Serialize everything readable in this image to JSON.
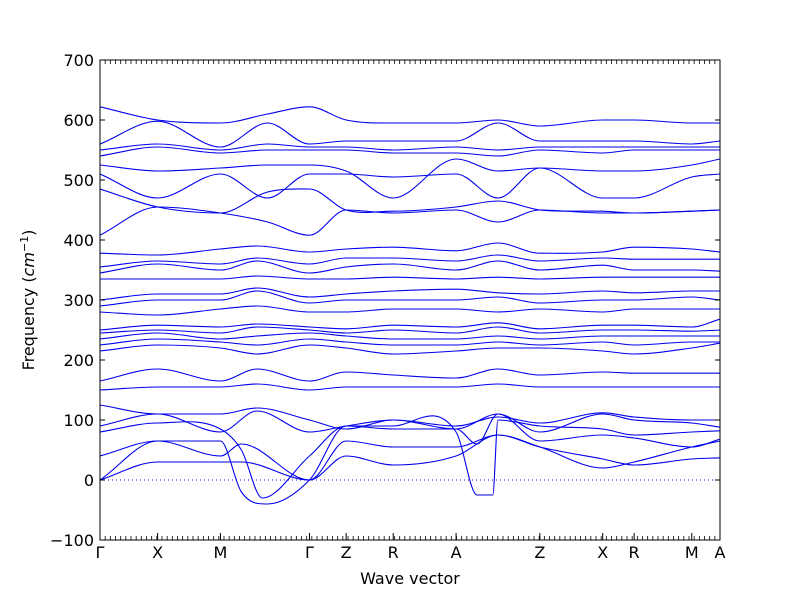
{
  "chart_data": {
    "type": "line",
    "xlabel": "Wave vector",
    "ylabel": "Frequency",
    "ylabel_unit": "cm",
    "ylabel_exponent": "−1",
    "ylim": [
      -100,
      700
    ],
    "yticks": [
      -100,
      0,
      100,
      200,
      300,
      400,
      500,
      600,
      700
    ],
    "path_points": [
      "Γ",
      "X",
      "M",
      "Γ",
      "Z",
      "R",
      "A",
      "Z",
      "X",
      "R",
      "M",
      "A"
    ],
    "path_positions": [
      0,
      0.55,
      1.15,
      2.0,
      2.35,
      2.8,
      3.4,
      4.2,
      4.8,
      5.1,
      5.65,
      5.92
    ],
    "x_range": [
      0,
      5.92
    ],
    "series_color": "#0000ee",
    "zero_line": true,
    "bands": [
      {
        "x": [
          0,
          0.55,
          1.15,
          1.35,
          2.0,
          2.35,
          2.8,
          3.4,
          3.8,
          4.2,
          4.8,
          5.1,
          5.65,
          5.92
        ],
        "y": [
          0,
          30,
          30,
          30,
          0,
          40,
          25,
          40,
          75,
          55,
          35,
          25,
          35,
          37
        ]
      },
      {
        "x": [
          0,
          0.55,
          1.15,
          1.35,
          2.0,
          2.35,
          2.8,
          3.4,
          3.8,
          4.2,
          4.8,
          5.1,
          5.65,
          5.92
        ],
        "y": [
          0,
          65,
          40,
          60,
          0,
          65,
          55,
          55,
          75,
          55,
          20,
          30,
          55,
          65
        ]
      },
      {
        "x": [
          0,
          0.55,
          1.15,
          1.35,
          1.6,
          2.0,
          2.35,
          2.8,
          3.4,
          3.6,
          3.8,
          4.2,
          4.8,
          5.1,
          5.65,
          5.92
        ],
        "y": [
          40,
          65,
          65,
          -20,
          -40,
          0,
          90,
          85,
          85,
          60,
          110,
          65,
          75,
          70,
          55,
          68
        ]
      },
      {
        "x": [
          0,
          0.55,
          1.15,
          1.35,
          1.55,
          2.0,
          2.35,
          2.8,
          3.4,
          3.6,
          3.75,
          3.8,
          4.2,
          4.8,
          5.1,
          5.65,
          5.92
        ],
        "y": [
          80,
          95,
          85,
          50,
          -30,
          40,
          90,
          90,
          80,
          -25,
          -25,
          100,
          90,
          85,
          75,
          80,
          82
        ]
      },
      {
        "x": [
          0,
          0.55,
          1.15,
          1.5,
          2.0,
          2.35,
          2.8,
          3.4,
          3.8,
          4.2,
          4.8,
          5.1,
          5.65,
          5.92
        ],
        "y": [
          90,
          110,
          80,
          115,
          80,
          90,
          100,
          85,
          110,
          80,
          110,
          100,
          95,
          88
        ]
      },
      {
        "x": [
          0,
          0.55,
          1.15,
          1.5,
          2.0,
          2.35,
          2.8,
          3.4,
          3.8,
          4.2,
          4.8,
          5.1,
          5.65,
          5.92
        ],
        "y": [
          125,
          110,
          110,
          120,
          100,
          85,
          100,
          90,
          105,
          95,
          112,
          105,
          100,
          100
        ]
      },
      {
        "x": [
          0,
          0.55,
          1.15,
          1.5,
          2.0,
          2.35,
          2.8,
          3.4,
          3.8,
          4.2,
          4.8,
          5.1,
          5.65,
          5.92
        ],
        "y": [
          150,
          155,
          155,
          160,
          150,
          155,
          155,
          155,
          160,
          155,
          155,
          155,
          155,
          155
        ]
      },
      {
        "x": [
          0,
          0.55,
          1.15,
          1.5,
          2.0,
          2.35,
          2.8,
          3.4,
          3.8,
          4.2,
          4.8,
          5.1,
          5.65,
          5.92
        ],
        "y": [
          165,
          185,
          165,
          185,
          165,
          180,
          175,
          170,
          185,
          175,
          180,
          178,
          178,
          178
        ]
      },
      {
        "x": [
          0,
          0.55,
          1.15,
          1.5,
          2.0,
          2.35,
          2.8,
          3.4,
          3.8,
          4.2,
          4.8,
          5.1,
          5.65,
          5.92
        ],
        "y": [
          215,
          225,
          220,
          210,
          225,
          220,
          210,
          215,
          220,
          220,
          215,
          210,
          220,
          228
        ]
      },
      {
        "x": [
          0,
          0.55,
          1.15,
          1.5,
          2.0,
          2.35,
          2.8,
          3.4,
          3.8,
          4.2,
          4.8,
          5.1,
          5.65,
          5.92
        ],
        "y": [
          225,
          235,
          230,
          225,
          235,
          230,
          225,
          225,
          230,
          225,
          230,
          225,
          230,
          230
        ]
      },
      {
        "x": [
          0,
          0.55,
          1.15,
          1.5,
          2.0,
          2.35,
          2.8,
          3.4,
          3.8,
          4.2,
          4.8,
          5.1,
          5.65,
          5.92
        ],
        "y": [
          235,
          245,
          235,
          240,
          245,
          240,
          235,
          235,
          240,
          235,
          240,
          240,
          240,
          240
        ]
      },
      {
        "x": [
          0,
          0.55,
          1.15,
          1.5,
          2.0,
          2.35,
          2.8,
          3.4,
          3.8,
          4.2,
          4.8,
          5.1,
          5.65,
          5.92
        ],
        "y": [
          245,
          250,
          245,
          255,
          250,
          245,
          250,
          245,
          255,
          245,
          250,
          250,
          248,
          250
        ]
      },
      {
        "x": [
          0,
          0.55,
          1.15,
          1.5,
          2.0,
          2.35,
          2.8,
          3.4,
          3.8,
          4.2,
          4.8,
          5.1,
          5.65,
          5.92
        ],
        "y": [
          250,
          258,
          255,
          260,
          255,
          252,
          258,
          255,
          262,
          252,
          258,
          258,
          255,
          268
        ]
      },
      {
        "x": [
          0,
          0.55,
          1.15,
          1.5,
          2.0,
          2.35,
          2.8,
          3.4,
          3.8,
          4.2,
          4.8,
          5.1,
          5.65,
          5.92
        ],
        "y": [
          280,
          275,
          285,
          290,
          280,
          280,
          285,
          285,
          280,
          285,
          280,
          285,
          285,
          285
        ]
      },
      {
        "x": [
          0,
          0.55,
          1.15,
          1.5,
          2.0,
          2.35,
          2.8,
          3.4,
          3.8,
          4.2,
          4.8,
          5.1,
          5.65,
          5.92
        ],
        "y": [
          290,
          300,
          300,
          315,
          295,
          300,
          300,
          300,
          305,
          295,
          300,
          300,
          305,
          300
        ]
      },
      {
        "x": [
          0,
          0.55,
          1.15,
          1.5,
          2.0,
          2.35,
          2.8,
          3.4,
          3.8,
          4.2,
          4.8,
          5.1,
          5.65,
          5.92
        ],
        "y": [
          300,
          310,
          310,
          320,
          305,
          310,
          315,
          318,
          312,
          310,
          315,
          312,
          315,
          315
        ]
      },
      {
        "x": [
          0,
          0.55,
          1.15,
          1.5,
          2.0,
          2.35,
          2.8,
          3.4,
          3.8,
          4.2,
          4.8,
          5.1,
          5.65,
          5.92
        ],
        "y": [
          335,
          335,
          335,
          340,
          335,
          335,
          338,
          335,
          338,
          335,
          338,
          338,
          338,
          338
        ]
      },
      {
        "x": [
          0,
          0.55,
          1.15,
          1.5,
          2.0,
          2.35,
          2.8,
          3.4,
          3.8,
          4.2,
          4.8,
          5.1,
          5.65,
          5.92
        ],
        "y": [
          345,
          360,
          350,
          365,
          345,
          355,
          360,
          350,
          365,
          350,
          358,
          350,
          350,
          348
        ]
      },
      {
        "x": [
          0,
          0.55,
          1.15,
          1.5,
          2.0,
          2.35,
          2.8,
          3.4,
          3.8,
          4.2,
          4.8,
          5.1,
          5.65,
          5.92
        ],
        "y": [
          355,
          365,
          360,
          370,
          360,
          370,
          370,
          365,
          375,
          365,
          370,
          368,
          368,
          368
        ]
      },
      {
        "x": [
          0,
          0.55,
          1.15,
          1.5,
          2.0,
          2.35,
          2.8,
          3.4,
          3.8,
          4.2,
          4.8,
          5.1,
          5.65,
          5.92
        ],
        "y": [
          378,
          375,
          385,
          390,
          380,
          385,
          388,
          382,
          395,
          378,
          380,
          388,
          385,
          380
        ]
      },
      {
        "x": [
          0,
          0.55,
          1.15,
          1.6,
          2.0,
          2.35,
          2.8,
          3.4,
          3.8,
          4.2,
          4.8,
          5.1,
          5.65,
          5.92
        ],
        "y": [
          408,
          455,
          445,
          430,
          408,
          450,
          445,
          450,
          430,
          450,
          445,
          445,
          448,
          450
        ]
      },
      {
        "x": [
          0,
          0.55,
          1.15,
          1.6,
          2.0,
          2.35,
          2.8,
          3.4,
          3.8,
          4.2,
          4.8,
          5.1,
          5.65,
          5.92
        ],
        "y": [
          485,
          455,
          445,
          480,
          485,
          450,
          448,
          455,
          465,
          450,
          448,
          445,
          448,
          450
        ]
      },
      {
        "x": [
          0,
          0.55,
          1.15,
          1.6,
          2.0,
          2.35,
          2.8,
          3.4,
          3.8,
          4.2,
          4.8,
          5.1,
          5.65,
          5.92
        ],
        "y": [
          510,
          470,
          510,
          470,
          510,
          510,
          505,
          510,
          470,
          520,
          470,
          470,
          505,
          510
        ]
      },
      {
        "x": [
          0,
          0.55,
          1.15,
          1.6,
          2.0,
          2.35,
          2.8,
          3.4,
          3.8,
          4.2,
          4.8,
          5.1,
          5.65,
          5.92
        ],
        "y": [
          525,
          515,
          520,
          525,
          525,
          515,
          470,
          535,
          515,
          520,
          515,
          515,
          525,
          535
        ]
      },
      {
        "x": [
          0,
          0.55,
          1.15,
          1.6,
          2.0,
          2.35,
          2.8,
          3.4,
          3.8,
          4.2,
          4.8,
          5.1,
          5.65,
          5.92
        ],
        "y": [
          540,
          555,
          545,
          550,
          550,
          550,
          545,
          545,
          540,
          550,
          545,
          550,
          550,
          550
        ]
      },
      {
        "x": [
          0,
          0.55,
          1.15,
          1.6,
          2.0,
          2.35,
          2.8,
          3.4,
          3.8,
          4.2,
          4.8,
          5.1,
          5.65,
          5.92
        ],
        "y": [
          550,
          560,
          550,
          560,
          555,
          555,
          550,
          555,
          550,
          555,
          555,
          555,
          555,
          555
        ]
      },
      {
        "x": [
          0,
          0.55,
          1.15,
          1.6,
          2.0,
          2.35,
          2.8,
          3.4,
          3.8,
          4.2,
          4.8,
          5.1,
          5.65,
          5.92
        ],
        "y": [
          560,
          598,
          555,
          595,
          560,
          565,
          565,
          565,
          595,
          565,
          565,
          565,
          560,
          565
        ]
      },
      {
        "x": [
          0,
          0.55,
          1.15,
          1.6,
          2.0,
          2.35,
          2.8,
          3.4,
          3.8,
          4.2,
          4.8,
          5.1,
          5.65,
          5.92
        ],
        "y": [
          622,
          600,
          595,
          610,
          622,
          600,
          595,
          595,
          600,
          590,
          600,
          600,
          595,
          595
        ]
      }
    ]
  }
}
